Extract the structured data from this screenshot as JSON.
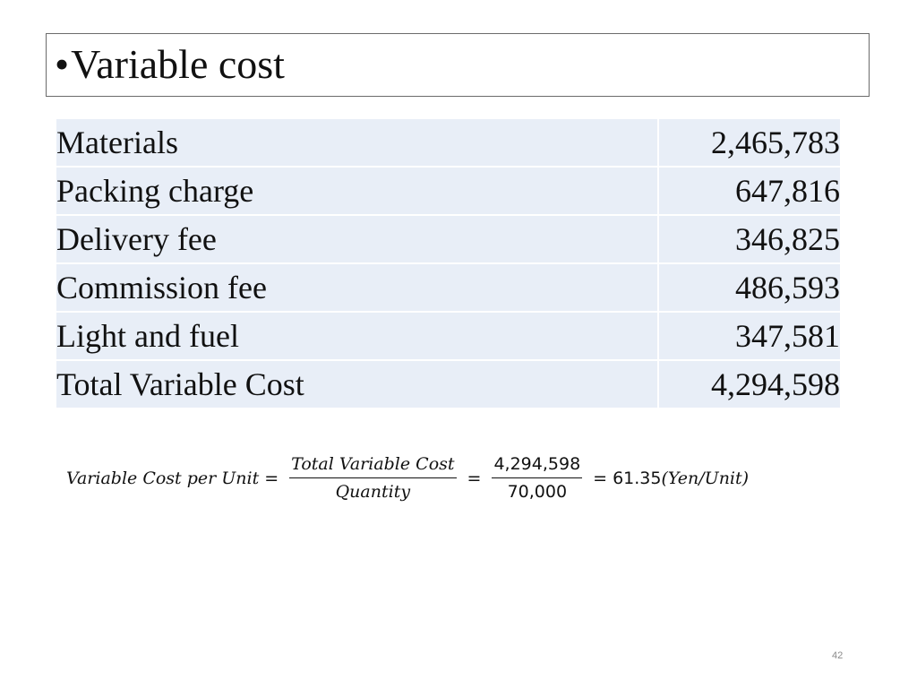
{
  "slide": {
    "title": "Variable cost",
    "bullet": "•",
    "page_number": "42"
  },
  "table": {
    "rows": [
      {
        "label": "Materials",
        "value": "2,465,783"
      },
      {
        "label": "Packing charge",
        "value": "647,816"
      },
      {
        "label": "Delivery fee",
        "value": "346,825"
      },
      {
        "label": "Commission fee",
        "value": "486,593"
      },
      {
        "label": "Light and fuel",
        "value": "347,581"
      },
      {
        "label": "Total Variable Cost",
        "value": "4,294,598"
      }
    ]
  },
  "formula": {
    "lhs": "Variable Cost per Unit",
    "eq": "=",
    "frac1_num": "Total Variable Cost",
    "frac1_den": "Quantity",
    "frac2_num": "4,294,598",
    "frac2_den": "70,000",
    "result": "61.35",
    "unit": "(Yen/Unit)"
  }
}
